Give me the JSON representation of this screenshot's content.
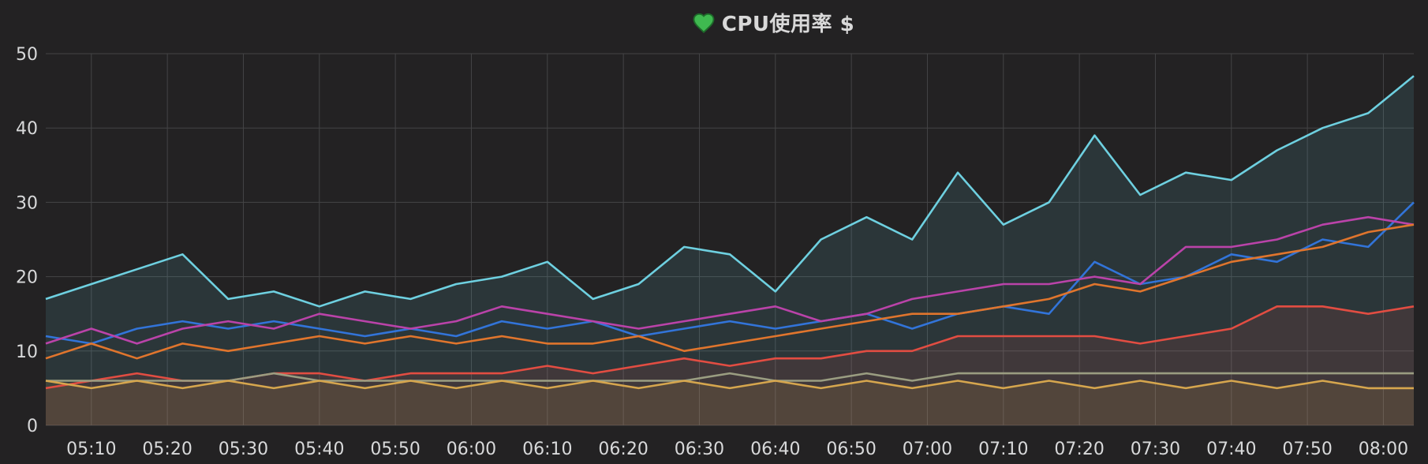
{
  "panel": {
    "title": "CPU使用率 $",
    "icon": "heart-icon",
    "icon_color": "#3fb950"
  },
  "chart_data": {
    "type": "area",
    "title": "CPU使用率 $",
    "xlabel": "",
    "ylabel": "",
    "x_domain": [
      "05:04",
      "08:04"
    ],
    "ylim": [
      0,
      50
    ],
    "grid": true,
    "legend": "none",
    "yticks": [
      "0",
      "10",
      "20",
      "30",
      "40",
      "50"
    ],
    "xticks": [
      "05:10",
      "05:20",
      "05:30",
      "05:40",
      "05:50",
      "06:00",
      "06:10",
      "06:20",
      "06:30",
      "06:40",
      "06:50",
      "07:00",
      "07:10",
      "07:20",
      "07:30",
      "07:40",
      "07:50",
      "08:00"
    ],
    "x": [
      "05:04",
      "05:10",
      "05:16",
      "05:22",
      "05:28",
      "05:34",
      "05:40",
      "05:46",
      "05:52",
      "05:58",
      "06:04",
      "06:10",
      "06:16",
      "06:22",
      "06:28",
      "06:34",
      "06:40",
      "06:46",
      "06:52",
      "06:58",
      "07:04",
      "07:10",
      "07:16",
      "07:22",
      "07:28",
      "07:34",
      "07:40",
      "07:46",
      "07:52",
      "07:58",
      "08:04"
    ],
    "series": [
      {
        "color": "#6ed0e0",
        "fill": true,
        "values": [
          17,
          19,
          21,
          23,
          17,
          18,
          16,
          18,
          17,
          19,
          20,
          22,
          17,
          19,
          24,
          23,
          18,
          25,
          28,
          25,
          34,
          27,
          30,
          39,
          31,
          34,
          33,
          37,
          40,
          42,
          47
        ]
      },
      {
        "color": "#3274d9",
        "fill": false,
        "values": [
          12,
          11,
          13,
          14,
          13,
          14,
          13,
          12,
          13,
          12,
          14,
          13,
          14,
          12,
          13,
          14,
          13,
          14,
          15,
          13,
          15,
          16,
          15,
          22,
          19,
          20,
          23,
          22,
          25,
          24,
          30
        ]
      },
      {
        "color": "#ba43a9",
        "fill": false,
        "values": [
          11,
          13,
          11,
          13,
          14,
          13,
          15,
          14,
          13,
          14,
          16,
          15,
          14,
          13,
          14,
          15,
          16,
          14,
          15,
          17,
          18,
          19,
          19,
          20,
          19,
          24,
          24,
          25,
          27,
          28,
          27
        ]
      },
      {
        "color": "#e0752d",
        "fill": false,
        "values": [
          9,
          11,
          9,
          11,
          10,
          11,
          12,
          11,
          12,
          11,
          12,
          11,
          11,
          12,
          10,
          11,
          12,
          13,
          14,
          15,
          15,
          16,
          17,
          19,
          18,
          20,
          22,
          23,
          24,
          26,
          27
        ]
      },
      {
        "color": "#e24d42",
        "fill": true,
        "values": [
          5,
          6,
          7,
          6,
          6,
          7,
          7,
          6,
          7,
          7,
          7,
          8,
          7,
          8,
          9,
          8,
          9,
          9,
          10,
          10,
          12,
          12,
          12,
          12,
          11,
          12,
          13,
          16,
          16,
          15,
          16
        ]
      },
      {
        "color": "#9a9d81",
        "fill": false,
        "values": [
          6,
          6,
          6,
          6,
          6,
          7,
          6,
          6,
          6,
          6,
          6,
          6,
          6,
          6,
          6,
          7,
          6,
          6,
          7,
          6,
          7,
          7,
          7,
          7,
          7,
          7,
          7,
          7,
          7,
          7,
          7
        ]
      },
      {
        "color": "#d6a64e",
        "fill": true,
        "values": [
          6,
          5,
          6,
          5,
          6,
          5,
          6,
          5,
          6,
          5,
          6,
          5,
          6,
          5,
          6,
          5,
          6,
          5,
          6,
          5,
          6,
          5,
          6,
          5,
          6,
          5,
          6,
          5,
          6,
          5,
          5
        ]
      }
    ]
  }
}
